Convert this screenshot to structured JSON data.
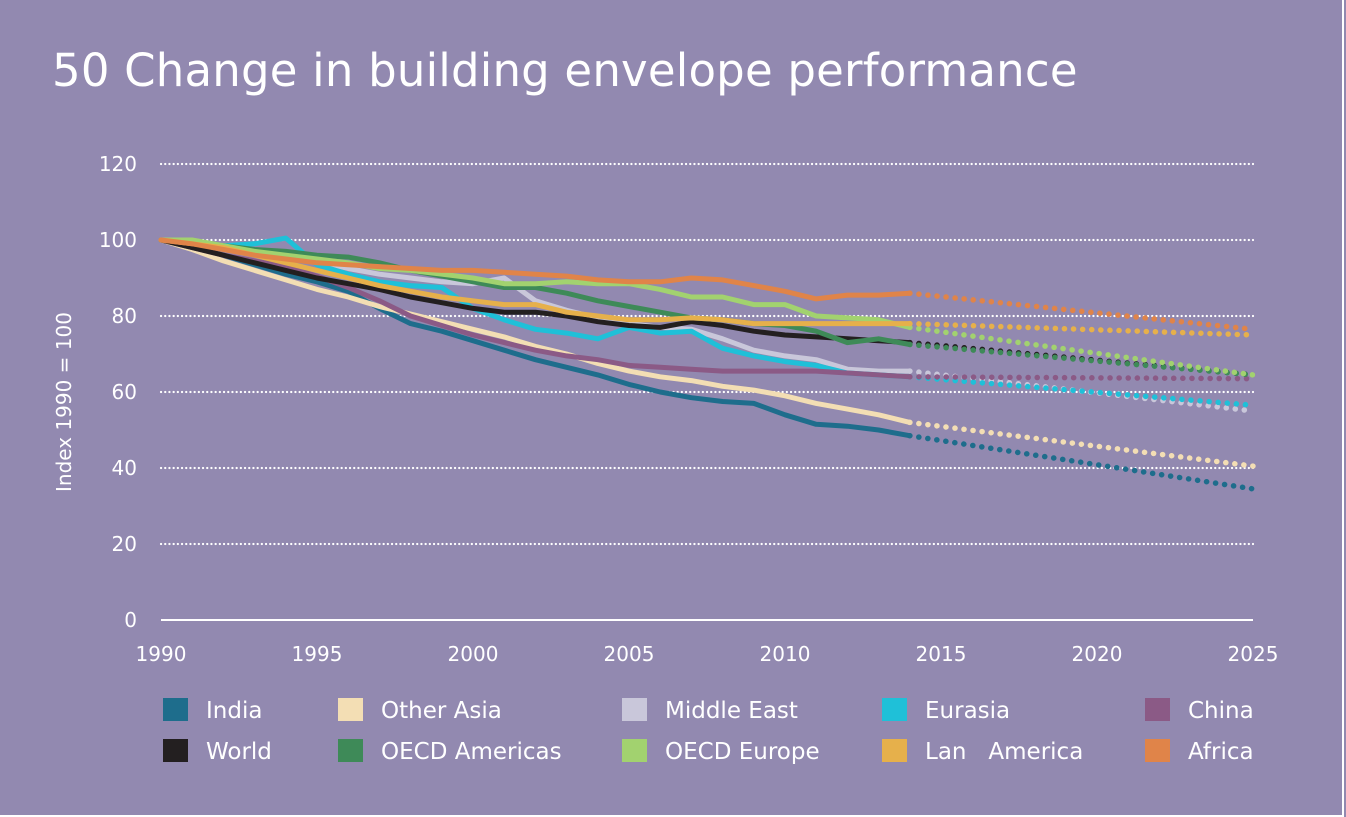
{
  "title": "50 Change in building envelope performance",
  "colors": {
    "background": "#9289b0",
    "grid": "#ffffff"
  },
  "chart_data": {
    "type": "line",
    "title": "50 Change in building envelope performance",
    "xlabel": "",
    "ylabel": "Index 1990 = 100",
    "xlim": [
      1990,
      2025
    ],
    "ylim": [
      0,
      120
    ],
    "xticks": [
      1990,
      1995,
      2000,
      2005,
      2010,
      2015,
      2020,
      2025
    ],
    "yticks": [
      0,
      20,
      40,
      60,
      80,
      100,
      120
    ],
    "grid": "horizontal dotted",
    "legend_position": "bottom",
    "projection_style": "dotted lines from 2014 to 2025",
    "series": [
      {
        "name": "India",
        "color": "#1e6d8c",
        "historical": {
          "x": [
            1990,
            1991,
            1992,
            1993,
            1994,
            1995,
            1996,
            1997,
            1998,
            1999,
            2000,
            2001,
            2002,
            2003,
            2004,
            2005,
            2006,
            2007,
            2008,
            2009,
            2010,
            2011,
            2012,
            2013,
            2014
          ],
          "y": [
            100,
            98,
            96,
            93.5,
            91,
            89,
            86.5,
            82,
            78,
            76,
            73.5,
            71,
            68.5,
            66.5,
            64.5,
            62,
            60,
            58.5,
            57.5,
            57,
            54,
            51.5,
            51,
            50,
            48.5
          ]
        },
        "projection": {
          "x": [
            2014,
            2025
          ],
          "y": [
            48.5,
            34.5
          ]
        }
      },
      {
        "name": "Other Asia",
        "color": "#f3deb4",
        "historical": {
          "x": [
            1990,
            1991,
            1992,
            1993,
            1994,
            1995,
            1996,
            1997,
            1998,
            1999,
            2000,
            2001,
            2002,
            2003,
            2004,
            2005,
            2006,
            2007,
            2008,
            2009,
            2010,
            2011,
            2012,
            2013,
            2014
          ],
          "y": [
            100,
            97.5,
            94.5,
            92,
            89.5,
            87,
            85,
            82.5,
            80.5,
            78.5,
            76.5,
            74.5,
            72,
            70,
            67.5,
            65.5,
            64,
            63,
            61.5,
            60.5,
            59,
            57,
            55.5,
            54,
            52
          ]
        },
        "projection": {
          "x": [
            2014,
            2025
          ],
          "y": [
            52,
            40.5
          ]
        }
      },
      {
        "name": "Middle East",
        "color": "#c9c7da",
        "historical": {
          "x": [
            1990,
            1991,
            1992,
            1993,
            1994,
            1995,
            1996,
            1997,
            1998,
            1999,
            2000,
            2001,
            2002,
            2003,
            2004,
            2005,
            2006,
            2007,
            2008,
            2009,
            2010,
            2011,
            2012,
            2013,
            2014
          ],
          "y": [
            100,
            99,
            98,
            97,
            96.5,
            94.5,
            92.5,
            91,
            90,
            89,
            88.5,
            90,
            84,
            81.5,
            79.5,
            78,
            77,
            76.5,
            74,
            71,
            69.5,
            68.5,
            66,
            65.5,
            65.5
          ]
        },
        "projection": {
          "x": [
            2014,
            2025
          ],
          "y": [
            65.5,
            55
          ]
        }
      },
      {
        "name": "Eurasia",
        "color": "#1fc0d8",
        "historical": {
          "x": [
            1990,
            1991,
            1992,
            1993,
            1994,
            1995,
            1996,
            1997,
            1998,
            1999,
            2000,
            2001,
            2002,
            2003,
            2004,
            2005,
            2006,
            2007,
            2008,
            2009,
            2010,
            2011,
            2012,
            2013,
            2014
          ],
          "y": [
            100,
            99,
            98.5,
            99,
            100.5,
            93.5,
            91,
            89,
            88,
            87.5,
            82,
            79,
            76.5,
            75.5,
            74,
            77,
            75.5,
            76,
            71.5,
            69.5,
            68,
            67,
            65,
            64.5,
            64
          ]
        },
        "projection": {
          "x": [
            2014,
            2025
          ],
          "y": [
            64,
            56.5
          ]
        }
      },
      {
        "name": "China",
        "color": "#8b5a86",
        "historical": {
          "x": [
            1990,
            1991,
            1992,
            1993,
            1994,
            1995,
            1996,
            1997,
            1998,
            1999,
            2000,
            2001,
            2002,
            2003,
            2004,
            2005,
            2006,
            2007,
            2008,
            2009,
            2010,
            2011,
            2012,
            2013,
            2014
          ],
          "y": [
            100,
            98,
            96,
            94.5,
            93,
            90.5,
            87.5,
            84,
            80,
            77.5,
            75,
            73,
            71,
            69.5,
            68.5,
            67,
            66.5,
            66,
            65.5,
            65.5,
            65.5,
            65.5,
            65,
            64.5,
            64
          ]
        },
        "projection": {
          "x": [
            2014,
            2025
          ],
          "y": [
            64,
            63.5
          ]
        }
      },
      {
        "name": "World",
        "color": "#231f20",
        "historical": {
          "x": [
            1990,
            1991,
            1992,
            1993,
            1994,
            1995,
            1996,
            1997,
            1998,
            1999,
            2000,
            2001,
            2002,
            2003,
            2004,
            2005,
            2006,
            2007,
            2008,
            2009,
            2010,
            2011,
            2012,
            2013,
            2014
          ],
          "y": [
            100,
            98,
            96,
            94,
            92,
            90,
            88.5,
            87,
            85,
            83.5,
            82,
            81,
            81,
            80,
            78.5,
            77.5,
            77,
            78.5,
            77.5,
            76,
            75,
            74.5,
            74,
            73.5,
            73
          ]
        },
        "projection": {
          "x": [
            2014,
            2025
          ],
          "y": [
            73,
            64.5
          ]
        }
      },
      {
        "name": "OECD Americas",
        "color": "#3e8a58",
        "historical": {
          "x": [
            1990,
            1991,
            1992,
            1993,
            1994,
            1995,
            1996,
            1997,
            1998,
            1999,
            2000,
            2001,
            2002,
            2003,
            2004,
            2005,
            2006,
            2007,
            2008,
            2009,
            2010,
            2011,
            2012,
            2013,
            2014
          ],
          "y": [
            100,
            99.5,
            98.5,
            97.5,
            97,
            96,
            95.5,
            94,
            92,
            90.5,
            89,
            87.5,
            87.5,
            86,
            84,
            82.5,
            81,
            79.5,
            79,
            78,
            77.5,
            76,
            73,
            74,
            72.5
          ]
        },
        "projection": {
          "x": [
            2014,
            2025
          ],
          "y": [
            72.5,
            64.5
          ]
        }
      },
      {
        "name": "OECD Europe",
        "color": "#a2d26f",
        "historical": {
          "x": [
            1990,
            1991,
            1992,
            1993,
            1994,
            1995,
            1996,
            1997,
            1998,
            1999,
            2000,
            2001,
            2002,
            2003,
            2004,
            2005,
            2006,
            2007,
            2008,
            2009,
            2010,
            2011,
            2012,
            2013,
            2014
          ],
          "y": [
            100,
            100,
            98.5,
            97,
            96,
            95,
            94,
            92.5,
            92,
            91,
            90,
            88.5,
            88.5,
            89,
            88.5,
            88.5,
            87,
            85,
            85,
            83,
            83,
            80,
            79.5,
            79,
            77
          ]
        },
        "projection": {
          "x": [
            2014,
            2025
          ],
          "y": [
            77,
            64.5
          ]
        }
      },
      {
        "name": "Lan   America",
        "color": "#e6b04b",
        "historical": {
          "x": [
            1990,
            1991,
            1992,
            1993,
            1994,
            1995,
            1996,
            1997,
            1998,
            1999,
            2000,
            2001,
            2002,
            2003,
            2004,
            2005,
            2006,
            2007,
            2008,
            2009,
            2010,
            2011,
            2012,
            2013,
            2014
          ],
          "y": [
            100,
            99,
            98,
            96,
            94,
            92,
            90,
            88,
            86.5,
            85,
            84,
            83,
            83,
            81,
            80,
            79,
            79,
            79.5,
            79,
            78,
            78,
            78,
            78,
            78,
            78
          ]
        },
        "projection": {
          "x": [
            2014,
            2025
          ],
          "y": [
            78,
            75
          ]
        }
      },
      {
        "name": "Africa",
        "color": "#e08449",
        "historical": {
          "x": [
            1990,
            1991,
            1992,
            1993,
            1994,
            1995,
            1996,
            1997,
            1998,
            1999,
            2000,
            2001,
            2002,
            2003,
            2004,
            2005,
            2006,
            2007,
            2008,
            2009,
            2010,
            2011,
            2012,
            2013,
            2014
          ],
          "y": [
            100,
            99,
            97.5,
            96,
            95,
            94,
            93.5,
            93,
            92.5,
            92,
            92,
            91.5,
            91,
            90.5,
            89.5,
            89,
            89,
            90,
            89.5,
            88,
            86.5,
            84.5,
            85.5,
            85.5,
            86
          ]
        },
        "projection": {
          "x": [
            2014,
            2025
          ],
          "y": [
            86,
            76.5
          ]
        }
      }
    ]
  }
}
